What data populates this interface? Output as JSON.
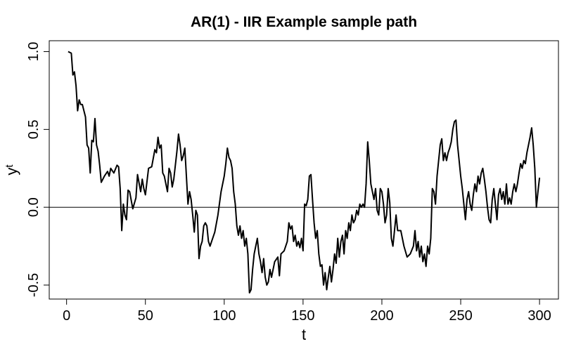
{
  "chart_data": {
    "type": "line",
    "title": "AR(1) - IIR Example sample path",
    "xlabel": "t",
    "ylabel": "y",
    "ylabel_subscript": "t",
    "xlim": [
      -11,
      312
    ],
    "ylim": [
      -0.59,
      1.07
    ],
    "xticks": [
      0,
      50,
      100,
      150,
      200,
      250,
      300
    ],
    "yticks": [
      -0.5,
      {
        "value": 0,
        "label": "0.0"
      },
      0.5,
      {
        "value": 1,
        "label": "1.0"
      }
    ],
    "hline": 0,
    "color": "#000000",
    "x": [
      1,
      3,
      4,
      5,
      6,
      7,
      8,
      9,
      10,
      12,
      13,
      14,
      15,
      16,
      17,
      18,
      19,
      20,
      21,
      22,
      24,
      26,
      27,
      28,
      30,
      32,
      33,
      34,
      35,
      36,
      37,
      38,
      39,
      40,
      42,
      44,
      45,
      47,
      48,
      49,
      50,
      52,
      54,
      56,
      57,
      58,
      59,
      60,
      61,
      62,
      64,
      65,
      66,
      67,
      68,
      70,
      71,
      72,
      73,
      74,
      75,
      76,
      77,
      78,
      79,
      80,
      81,
      82,
      83,
      84,
      85,
      86,
      87,
      88,
      89,
      90,
      91,
      92,
      94,
      96,
      98,
      100,
      101,
      102,
      103,
      104,
      105,
      106,
      107,
      108,
      109,
      110,
      111,
      112,
      113,
      114,
      115,
      116,
      117,
      118,
      119,
      120,
      121,
      122,
      123,
      124,
      125,
      126,
      127,
      128,
      129,
      130,
      131,
      132,
      134,
      135,
      136,
      138,
      140,
      141,
      142,
      143,
      144,
      145,
      146,
      147,
      148,
      149,
      150,
      151,
      152,
      153,
      154,
      155,
      156,
      157,
      158,
      159,
      160,
      161,
      162,
      163,
      164,
      165,
      166,
      167,
      168,
      169,
      170,
      171,
      172,
      173,
      174,
      175,
      176,
      177,
      178,
      179,
      180,
      181,
      182,
      183,
      184,
      185,
      186,
      187,
      188,
      189,
      190,
      191,
      192,
      193,
      194,
      195,
      196,
      197,
      198,
      199,
      200,
      201,
      202,
      203,
      204,
      205,
      206,
      207,
      208,
      209,
      210,
      212,
      214,
      216,
      218,
      220,
      221,
      222,
      223,
      224,
      225,
      226,
      227,
      228,
      229,
      230,
      231,
      232,
      233,
      234,
      235,
      236,
      237,
      238,
      239,
      240,
      241,
      242,
      243,
      244,
      245,
      246,
      247,
      248,
      249,
      250,
      251,
      252,
      253,
      254,
      255,
      256,
      257,
      258,
      259,
      260,
      261,
      262,
      263,
      264,
      265,
      266,
      267,
      268,
      269,
      270,
      271,
      272,
      273,
      274,
      275,
      276,
      277,
      278,
      279,
      280,
      281,
      282,
      283,
      284,
      285,
      286,
      287,
      288,
      289,
      290,
      291,
      292,
      293,
      294,
      295,
      296,
      297,
      298,
      299,
      300
    ],
    "values": [
      1.0,
      0.99,
      0.85,
      0.87,
      0.78,
      0.62,
      0.69,
      0.66,
      0.66,
      0.58,
      0.4,
      0.38,
      0.22,
      0.43,
      0.42,
      0.57,
      0.4,
      0.36,
      0.27,
      0.16,
      0.2,
      0.23,
      0.2,
      0.25,
      0.22,
      0.27,
      0.26,
      0.12,
      -0.15,
      0.02,
      -0.05,
      -0.08,
      0.11,
      0.1,
      -0.01,
      0.06,
      0.21,
      0.1,
      0.18,
      0.12,
      0.08,
      0.25,
      0.26,
      0.37,
      0.35,
      0.45,
      0.38,
      0.4,
      0.22,
      0.2,
      0.1,
      0.25,
      0.22,
      0.13,
      0.18,
      0.36,
      0.47,
      0.4,
      0.3,
      0.33,
      0.38,
      0.2,
      0.02,
      0.1,
      0.05,
      -0.05,
      -0.16,
      -0.02,
      -0.05,
      -0.33,
      -0.25,
      -0.22,
      -0.12,
      -0.1,
      -0.12,
      -0.22,
      -0.25,
      -0.22,
      -0.16,
      -0.05,
      0.1,
      0.2,
      0.28,
      0.38,
      0.32,
      0.3,
      0.25,
      0.1,
      0.02,
      -0.12,
      -0.18,
      -0.12,
      -0.2,
      -0.15,
      -0.25,
      -0.2,
      -0.3,
      -0.55,
      -0.53,
      -0.4,
      -0.3,
      -0.25,
      -0.2,
      -0.3,
      -0.35,
      -0.42,
      -0.33,
      -0.45,
      -0.5,
      -0.48,
      -0.4,
      -0.45,
      -0.4,
      -0.35,
      -0.32,
      -0.44,
      -0.3,
      -0.28,
      -0.22,
      -0.1,
      -0.14,
      -0.12,
      -0.22,
      -0.18,
      -0.25,
      -0.22,
      -0.26,
      -0.2,
      -0.28,
      0.02,
      0.01,
      0.05,
      0.2,
      0.21,
      0.05,
      -0.1,
      -0.2,
      -0.15,
      -0.3,
      -0.38,
      -0.37,
      -0.5,
      -0.42,
      -0.53,
      -0.45,
      -0.38,
      -0.48,
      -0.4,
      -0.3,
      -0.36,
      -0.2,
      -0.32,
      -0.22,
      -0.18,
      -0.3,
      -0.15,
      -0.2,
      -0.1,
      -0.15,
      -0.05,
      -0.1,
      -0.08,
      -0.02,
      -0.05,
      0.02,
      0.0,
      0.02,
      0.0,
      0.15,
      0.42,
      0.3,
      0.15,
      0.1,
      0.05,
      0.12,
      -0.02,
      -0.05,
      0.12,
      0.1,
      0.02,
      -0.1,
      -0.05,
      0.12,
      0.03,
      -0.2,
      -0.25,
      -0.15,
      -0.05,
      -0.15,
      -0.15,
      -0.25,
      -0.32,
      -0.3,
      -0.25,
      -0.15,
      -0.28,
      -0.22,
      -0.32,
      -0.25,
      -0.35,
      -0.3,
      -0.38,
      -0.25,
      -0.3,
      -0.2,
      0.12,
      0.1,
      0.02,
      0.2,
      0.3,
      0.4,
      0.44,
      0.3,
      0.35,
      0.3,
      0.35,
      0.38,
      0.42,
      0.5,
      0.55,
      0.56,
      0.4,
      0.3,
      0.2,
      0.12,
      0.02,
      -0.08,
      0.05,
      0.1,
      0.02,
      -0.02,
      0.08,
      0.15,
      0.1,
      0.2,
      0.15,
      0.22,
      0.25,
      0.18,
      0.1,
      0.0,
      -0.08,
      -0.1,
      0.05,
      0.12,
      0.02,
      -0.08,
      0.08,
      0.12,
      0.05,
      0.1,
      0.02,
      0.15,
      0.02,
      0.06,
      0.02,
      0.1,
      0.15,
      0.1,
      0.15,
      0.22,
      0.28,
      0.25,
      0.3,
      0.28,
      0.35,
      0.4,
      0.45,
      0.51,
      0.4,
      0.25,
      0.0,
      0.1,
      0.19
    ]
  }
}
